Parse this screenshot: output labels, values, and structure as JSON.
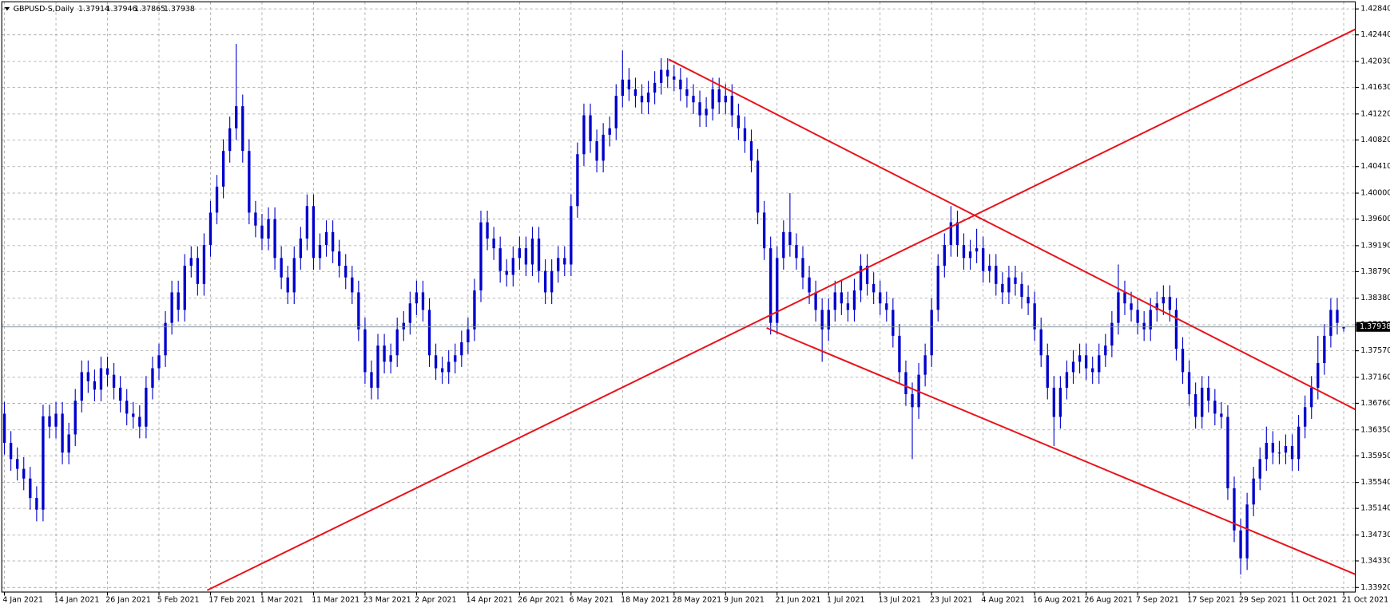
{
  "chart_data": {
    "type": "candlestick",
    "title": "GBPUSD-S,Daily",
    "color": "#0000cd",
    "price_line_color": "#778899",
    "grid": true,
    "ylim": [
      1.3385,
      1.4295
    ],
    "yticks": [
      {
        "value": 1.4284,
        "label": "1.42840"
      },
      {
        "value": 1.4244,
        "label": "1.42440"
      },
      {
        "value": 1.4203,
        "label": "1.42030"
      },
      {
        "value": 1.4163,
        "label": "1.41630"
      },
      {
        "value": 1.4122,
        "label": "1.41220"
      },
      {
        "value": 1.4082,
        "label": "1.40820"
      },
      {
        "value": 1.4041,
        "label": "1.40410"
      },
      {
        "value": 1.4,
        "label": "1.40000"
      },
      {
        "value": 1.396,
        "label": "1.39600"
      },
      {
        "value": 1.3919,
        "label": "1.39190"
      },
      {
        "value": 1.3879,
        "label": "1.38790"
      },
      {
        "value": 1.3838,
        "label": "1.38380"
      },
      {
        "value": 1.3797,
        "label": "1.37970"
      },
      {
        "value": 1.3757,
        "label": "1.37570"
      },
      {
        "value": 1.3716,
        "label": "1.37160"
      },
      {
        "value": 1.3676,
        "label": "1.36760"
      },
      {
        "value": 1.3635,
        "label": "1.36350"
      },
      {
        "value": 1.3595,
        "label": "1.35950"
      },
      {
        "value": 1.3554,
        "label": "1.35540"
      },
      {
        "value": 1.3514,
        "label": "1.35140"
      },
      {
        "value": 1.3473,
        "label": "1.34730"
      },
      {
        "value": 1.3433,
        "label": "1.34330"
      },
      {
        "value": 1.3392,
        "label": "1.33920"
      }
    ],
    "categories": [
      "4 Jan 2021",
      null,
      null,
      null,
      null,
      null,
      null,
      null,
      "14 Jan 2021",
      null,
      null,
      null,
      null,
      null,
      null,
      null,
      "26 Jan 2021",
      null,
      null,
      null,
      null,
      null,
      null,
      null,
      "5 Feb 2021",
      null,
      null,
      null,
      null,
      null,
      null,
      null,
      "17 Feb 2021",
      null,
      null,
      null,
      null,
      null,
      null,
      null,
      "1 Mar 2021",
      null,
      null,
      null,
      null,
      null,
      null,
      null,
      "11 Mar 2021",
      null,
      null,
      null,
      null,
      null,
      null,
      null,
      "23 Mar 2021",
      null,
      null,
      null,
      null,
      null,
      null,
      null,
      "2 Apr 2021",
      null,
      null,
      null,
      null,
      null,
      null,
      null,
      "14 Apr 2021",
      null,
      null,
      null,
      null,
      null,
      null,
      null,
      "26 Apr 2021",
      null,
      null,
      null,
      null,
      null,
      null,
      null,
      "6 May 2021",
      null,
      null,
      null,
      null,
      null,
      null,
      null,
      "18 May 2021",
      null,
      null,
      null,
      null,
      null,
      null,
      null,
      "28 May 2021",
      null,
      null,
      null,
      null,
      null,
      null,
      null,
      "9 Jun 2021",
      null,
      null,
      null,
      null,
      null,
      null,
      null,
      "21 Jun 2021",
      null,
      null,
      null,
      null,
      null,
      null,
      null,
      "1 Jul 2021",
      null,
      null,
      null,
      null,
      null,
      null,
      null,
      "13 Jul 2021",
      null,
      null,
      null,
      null,
      null,
      null,
      null,
      "23 Jul 2021",
      null,
      null,
      null,
      null,
      null,
      null,
      null,
      "4 Aug 2021",
      null,
      null,
      null,
      null,
      null,
      null,
      null,
      "16 Aug 2021",
      null,
      null,
      null,
      null,
      null,
      null,
      null,
      "26 Aug 2021",
      null,
      null,
      null,
      null,
      null,
      null,
      null,
      "7 Sep 2021",
      null,
      null,
      null,
      null,
      null,
      null,
      null,
      "17 Sep 2021",
      null,
      null,
      null,
      null,
      null,
      null,
      null,
      "29 Sep 2021",
      null,
      null,
      null,
      null,
      null,
      null,
      null,
      "11 Oct 2021",
      null,
      null,
      null,
      null,
      null,
      null,
      null,
      "21 Oct 2021"
    ],
    "open": [
      1.366,
      1.3615,
      1.359,
      1.3575,
      1.356,
      1.353,
      1.3512,
      1.3656,
      1.364,
      1.366,
      1.36,
      1.3628,
      1.368,
      1.3724,
      1.371,
      1.3697,
      1.373,
      1.372,
      1.37,
      1.368,
      1.366,
      1.3655,
      1.364,
      1.37,
      1.373,
      1.375,
      1.38,
      1.3847,
      1.382,
      1.3888,
      1.39,
      1.386,
      1.392,
      1.397,
      1.401,
      1.4065,
      1.41,
      1.4134,
      1.4065,
      1.397,
      1.395,
      1.393,
      1.396,
      1.39,
      1.387,
      1.3847,
      1.39,
      1.393,
      1.398,
      1.39,
      1.392,
      1.394,
      1.391,
      1.3888,
      1.387,
      1.3847,
      1.379,
      1.3724,
      1.37,
      1.3765,
      1.374,
      1.375,
      1.379,
      1.38,
      1.383,
      1.3847,
      1.382,
      1.375,
      1.373,
      1.3724,
      1.374,
      1.375,
      1.377,
      1.379,
      1.385,
      1.3955,
      1.393,
      1.3915,
      1.388,
      1.3874,
      1.39,
      1.3915,
      1.389,
      1.393,
      1.388,
      1.3847,
      1.388,
      1.39,
      1.389,
      1.398,
      1.406,
      1.412,
      1.408,
      1.405,
      1.409,
      1.41,
      1.415,
      1.4175,
      1.416,
      1.415,
      1.414,
      1.4155,
      1.417,
      1.419,
      1.418,
      1.4175,
      1.416,
      1.415,
      1.414,
      1.412,
      1.413,
      1.416,
      1.414,
      1.415,
      1.412,
      1.41,
      1.408,
      1.405,
      1.397,
      1.3915,
      1.38,
      1.39,
      1.394,
      1.392,
      1.39,
      1.387,
      1.3847,
      1.382,
      1.379,
      1.382,
      1.3847,
      1.383,
      1.382,
      1.385,
      1.3888,
      1.386,
      1.3847,
      1.383,
      1.382,
      1.378,
      1.3724,
      1.369,
      1.367,
      1.372,
      1.375,
      1.382,
      1.3888,
      1.392,
      1.3955,
      1.392,
      1.39,
      1.391,
      1.3915,
      1.388,
      1.3888,
      1.386,
      1.3847,
      1.387,
      1.386,
      1.384,
      1.383,
      1.379,
      1.375,
      1.37,
      1.3655,
      1.37,
      1.3724,
      1.374,
      1.375,
      1.373,
      1.3724,
      1.375,
      1.3765,
      1.38,
      1.3847,
      1.383,
      1.382,
      1.38,
      1.379,
      1.382,
      1.383,
      1.384,
      1.382,
      1.376,
      1.3724,
      1.369,
      1.3655,
      1.37,
      1.368,
      1.366,
      1.3655,
      1.3545,
      1.348,
      1.3437,
      1.352,
      1.356,
      1.359,
      1.3615,
      1.36,
      1.36,
      1.361,
      1.359,
      1.364,
      1.367,
      1.37,
      1.3738,
      1.378,
      1.382,
      1.37914
    ],
    "high": [
      1.3678,
      1.3633,
      1.3608,
      1.3593,
      1.3578,
      1.3548,
      1.3674,
      1.3674,
      1.3678,
      1.3678,
      1.3646,
      1.3698,
      1.3742,
      1.3742,
      1.3728,
      1.3748,
      1.3748,
      1.3738,
      1.3718,
      1.3698,
      1.3678,
      1.3673,
      1.3718,
      1.3748,
      1.3768,
      1.3818,
      1.3865,
      1.3865,
      1.3906,
      1.3918,
      1.3918,
      1.3938,
      1.3988,
      1.4028,
      1.4083,
      1.4118,
      1.423,
      1.4152,
      1.4083,
      1.3988,
      1.3968,
      1.3978,
      1.3978,
      1.3918,
      1.3888,
      1.3918,
      1.3948,
      1.3998,
      1.3998,
      1.3938,
      1.3958,
      1.3958,
      1.3928,
      1.3906,
      1.3888,
      1.3865,
      1.3808,
      1.3742,
      1.3783,
      1.3783,
      1.3768,
      1.3808,
      1.3818,
      1.3848,
      1.3865,
      1.3865,
      1.3838,
      1.3768,
      1.3748,
      1.3758,
      1.3768,
      1.3788,
      1.3808,
      1.3868,
      1.3973,
      1.3973,
      1.3948,
      1.3933,
      1.3898,
      1.3918,
      1.3933,
      1.3933,
      1.3948,
      1.3948,
      1.3898,
      1.3898,
      1.3918,
      1.3918,
      1.3998,
      1.4078,
      1.4138,
      1.4138,
      1.4098,
      1.4108,
      1.4118,
      1.4168,
      1.422,
      1.4193,
      1.4178,
      1.4168,
      1.4173,
      1.4188,
      1.4208,
      1.4208,
      1.4198,
      1.4193,
      1.4178,
      1.4168,
      1.4158,
      1.4148,
      1.4178,
      1.4178,
      1.4168,
      1.4168,
      1.4138,
      1.4118,
      1.4098,
      1.4068,
      1.3988,
      1.3933,
      1.3918,
      1.3958,
      1.4,
      1.3938,
      1.3918,
      1.3888,
      1.3865,
      1.3838,
      1.3838,
      1.3865,
      1.3865,
      1.3848,
      1.3868,
      1.3906,
      1.3906,
      1.3878,
      1.3865,
      1.3848,
      1.3838,
      1.3798,
      1.3742,
      1.3708,
      1.3738,
      1.3768,
      1.3838,
      1.3906,
      1.3938,
      1.398,
      1.3973,
      1.3938,
      1.3928,
      1.3945,
      1.3933,
      1.3906,
      1.3906,
      1.3878,
      1.3888,
      1.3888,
      1.3878,
      1.3858,
      1.3848,
      1.3808,
      1.3768,
      1.3718,
      1.3718,
      1.3742,
      1.3758,
      1.3768,
      1.3768,
      1.3748,
      1.3768,
      1.3783,
      1.3818,
      1.389,
      1.3865,
      1.3848,
      1.3838,
      1.3818,
      1.3838,
      1.3848,
      1.3858,
      1.3858,
      1.3838,
      1.3778,
      1.3742,
      1.3708,
      1.3718,
      1.3718,
      1.3698,
      1.3678,
      1.3673,
      1.3563,
      1.3498,
      1.3538,
      1.3578,
      1.3608,
      1.364,
      1.3633,
      1.3618,
      1.3628,
      1.3628,
      1.3658,
      1.3688,
      1.3718,
      1.378,
      1.3798,
      1.3838,
      1.3838,
      1.37946
    ],
    "low": [
      1.3597,
      1.3572,
      1.3557,
      1.3542,
      1.3512,
      1.3494,
      1.3494,
      1.3622,
      1.3622,
      1.3582,
      1.3582,
      1.361,
      1.3662,
      1.3692,
      1.3679,
      1.3679,
      1.3702,
      1.3682,
      1.3662,
      1.3642,
      1.3637,
      1.3622,
      1.3622,
      1.3682,
      1.3712,
      1.3732,
      1.3782,
      1.3802,
      1.3802,
      1.387,
      1.3842,
      1.3842,
      1.3902,
      1.3952,
      1.3992,
      1.4047,
      1.4082,
      1.4047,
      1.3952,
      1.3932,
      1.3912,
      1.3912,
      1.3882,
      1.3852,
      1.3829,
      1.3829,
      1.3882,
      1.3912,
      1.3882,
      1.3882,
      1.3902,
      1.3892,
      1.387,
      1.3852,
      1.3829,
      1.3772,
      1.3706,
      1.3682,
      1.3682,
      1.3722,
      1.3722,
      1.3732,
      1.3772,
      1.3782,
      1.3812,
      1.3802,
      1.3732,
      1.3712,
      1.3706,
      1.3706,
      1.3722,
      1.3732,
      1.3752,
      1.3772,
      1.3832,
      1.3912,
      1.3897,
      1.3862,
      1.3856,
      1.3856,
      1.3882,
      1.3872,
      1.3872,
      1.3862,
      1.3829,
      1.3829,
      1.3862,
      1.3872,
      1.3872,
      1.3962,
      1.4042,
      1.4062,
      1.4032,
      1.4032,
      1.4072,
      1.4082,
      1.4132,
      1.4142,
      1.4132,
      1.4122,
      1.4122,
      1.4137,
      1.4152,
      1.4162,
      1.4157,
      1.4142,
      1.4132,
      1.4122,
      1.4102,
      1.4102,
      1.4112,
      1.4122,
      1.4122,
      1.4102,
      1.4082,
      1.4062,
      1.4032,
      1.3952,
      1.3897,
      1.3782,
      1.3782,
      1.3882,
      1.3902,
      1.3882,
      1.3852,
      1.3829,
      1.3802,
      1.374,
      1.3772,
      1.3802,
      1.3812,
      1.3802,
      1.3802,
      1.3832,
      1.3842,
      1.3829,
      1.3812,
      1.3802,
      1.3762,
      1.3706,
      1.3672,
      1.359,
      1.3652,
      1.3702,
      1.3732,
      1.3802,
      1.387,
      1.3902,
      1.3902,
      1.3882,
      1.3882,
      1.3892,
      1.3862,
      1.3862,
      1.3842,
      1.3829,
      1.3829,
      1.3842,
      1.3822,
      1.3812,
      1.3772,
      1.3732,
      1.3682,
      1.361,
      1.3637,
      1.3682,
      1.3706,
      1.3722,
      1.3712,
      1.3706,
      1.3706,
      1.3732,
      1.3747,
      1.3782,
      1.3812,
      1.3802,
      1.3782,
      1.3772,
      1.3772,
      1.3802,
      1.3812,
      1.3802,
      1.3742,
      1.3706,
      1.3672,
      1.3637,
      1.3637,
      1.3662,
      1.3642,
      1.3637,
      1.3527,
      1.3462,
      1.3412,
      1.3419,
      1.3502,
      1.3542,
      1.3572,
      1.3582,
      1.3582,
      1.3582,
      1.3572,
      1.3572,
      1.3622,
      1.3652,
      1.3682,
      1.372,
      1.3762,
      1.3782,
      1.37865
    ],
    "close": [
      1.3615,
      1.359,
      1.3575,
      1.356,
      1.353,
      1.3512,
      1.3656,
      1.364,
      1.366,
      1.36,
      1.3628,
      1.368,
      1.3724,
      1.371,
      1.3697,
      1.373,
      1.372,
      1.37,
      1.368,
      1.366,
      1.3655,
      1.364,
      1.37,
      1.373,
      1.375,
      1.38,
      1.3847,
      1.382,
      1.3888,
      1.39,
      1.386,
      1.392,
      1.397,
      1.401,
      1.4065,
      1.41,
      1.4134,
      1.4065,
      1.397,
      1.395,
      1.393,
      1.396,
      1.39,
      1.387,
      1.3847,
      1.39,
      1.393,
      1.398,
      1.39,
      1.392,
      1.394,
      1.391,
      1.3888,
      1.387,
      1.3847,
      1.379,
      1.3724,
      1.37,
      1.3765,
      1.374,
      1.375,
      1.379,
      1.38,
      1.383,
      1.3847,
      1.382,
      1.375,
      1.373,
      1.3724,
      1.374,
      1.375,
      1.377,
      1.379,
      1.385,
      1.3955,
      1.393,
      1.3915,
      1.388,
      1.3874,
      1.39,
      1.3915,
      1.389,
      1.393,
      1.388,
      1.3847,
      1.388,
      1.39,
      1.389,
      1.398,
      1.406,
      1.412,
      1.408,
      1.405,
      1.409,
      1.41,
      1.415,
      1.4175,
      1.416,
      1.415,
      1.414,
      1.4155,
      1.417,
      1.419,
      1.418,
      1.4175,
      1.416,
      1.415,
      1.414,
      1.412,
      1.413,
      1.416,
      1.414,
      1.415,
      1.412,
      1.41,
      1.408,
      1.405,
      1.397,
      1.3915,
      1.38,
      1.39,
      1.394,
      1.392,
      1.39,
      1.387,
      1.3847,
      1.382,
      1.379,
      1.382,
      1.3847,
      1.383,
      1.382,
      1.385,
      1.3888,
      1.386,
      1.3847,
      1.383,
      1.382,
      1.378,
      1.3724,
      1.369,
      1.367,
      1.372,
      1.375,
      1.382,
      1.3888,
      1.392,
      1.3955,
      1.392,
      1.39,
      1.391,
      1.3915,
      1.388,
      1.3888,
      1.386,
      1.3847,
      1.387,
      1.386,
      1.384,
      1.383,
      1.379,
      1.375,
      1.37,
      1.3655,
      1.37,
      1.3724,
      1.374,
      1.375,
      1.373,
      1.3724,
      1.375,
      1.3765,
      1.38,
      1.3847,
      1.383,
      1.382,
      1.38,
      1.379,
      1.382,
      1.383,
      1.384,
      1.382,
      1.376,
      1.3724,
      1.369,
      1.3655,
      1.37,
      1.368,
      1.366,
      1.3655,
      1.3545,
      1.348,
      1.3437,
      1.352,
      1.356,
      1.359,
      1.3615,
      1.36,
      1.36,
      1.361,
      1.359,
      1.364,
      1.367,
      1.37,
      1.3738,
      1.378,
      1.382,
      1.38,
      1.37938
    ]
  }
}
